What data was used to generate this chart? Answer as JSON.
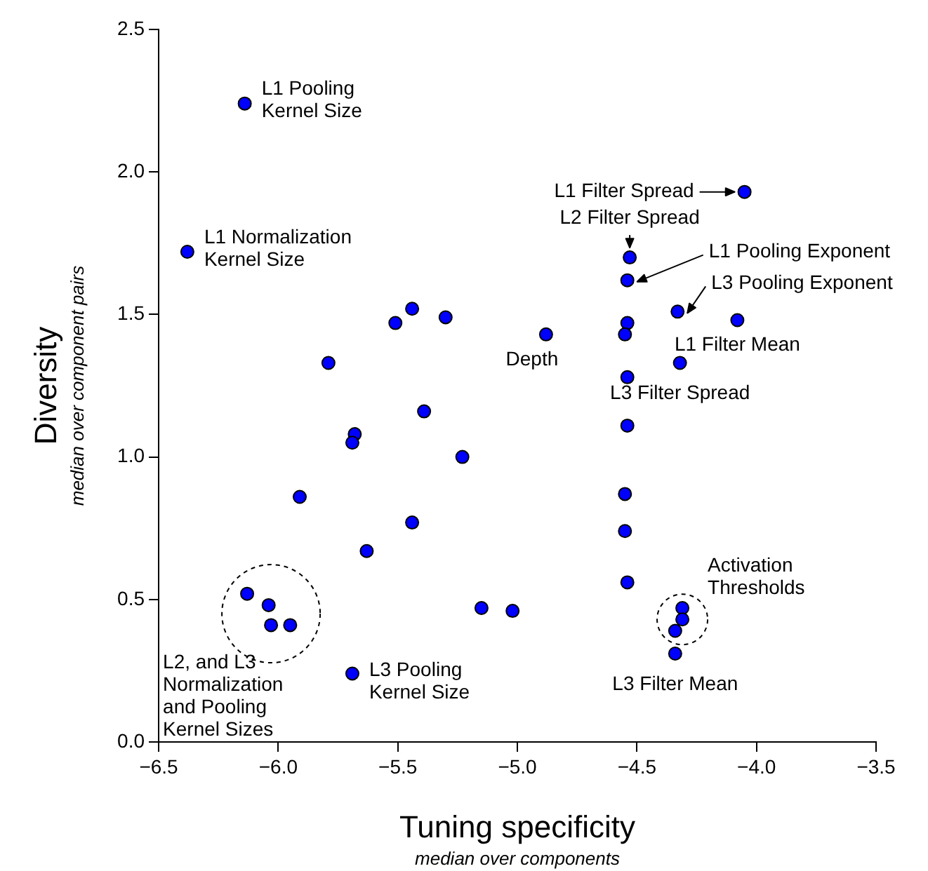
{
  "chart_data": {
    "type": "scatter",
    "xlabel": "Tuning specificity",
    "ylabel": "Diversity",
    "x": [
      -6.14,
      -6.38,
      -5.44,
      -5.51,
      -5.3,
      -5.79,
      -5.39,
      -5.68,
      -5.69,
      -5.23,
      -5.91,
      -5.44,
      -5.63,
      -6.13,
      -6.04,
      -6.03,
      -5.95,
      -5.69,
      -5.15,
      -5.02,
      -4.55,
      -4.55,
      -4.54,
      -4.31,
      -4.31,
      -4.34,
      -4.34,
      -4.05,
      -4.53,
      -4.54,
      -4.33,
      -4.08,
      -4.88,
      -4.54,
      -4.55,
      -4.32,
      -4.54,
      -4.54
    ],
    "values": [
      2.24,
      1.72,
      1.52,
      1.47,
      1.49,
      1.33,
      1.16,
      1.08,
      1.05,
      1.0,
      0.86,
      0.77,
      0.67,
      0.52,
      0.48,
      0.41,
      0.41,
      0.24,
      0.47,
      0.46,
      0.87,
      0.74,
      0.56,
      0.47,
      0.43,
      0.39,
      0.31,
      1.93,
      1.7,
      1.62,
      1.51,
      1.48,
      1.43,
      1.47,
      1.43,
      1.33,
      1.28,
      1.11
    ],
    "color": "#0000ff",
    "marker": "circle",
    "grid": false,
    "legend": false,
    "xlim": [
      -6.5,
      -3.5
    ],
    "xticks": [
      {
        "value": -6.5,
        "label": "−6.5"
      },
      {
        "value": -6.0,
        "label": "−6.0"
      },
      {
        "value": -5.5,
        "label": "−5.5"
      },
      {
        "value": -5.0,
        "label": "−5.0"
      },
      {
        "value": -4.5,
        "label": "−4.5"
      },
      {
        "value": -4.0,
        "label": "−4.0"
      },
      {
        "value": -3.5,
        "label": "−3.5"
      }
    ],
    "ylim": [
      0,
      2.5
    ],
    "yticks": [
      {
        "value": 0,
        "label": "0.0"
      },
      0.5,
      {
        "value": 1,
        "label": "1.0"
      },
      1.5,
      {
        "value": 2,
        "label": "2.0"
      },
      2.5
    ],
    "annotations": [
      {
        "text": "L1 Pooling Kernel Size",
        "x": -6.14,
        "y": 2.24
      },
      {
        "text": "L1 Normalization Kernel Size",
        "x": -6.38,
        "y": 1.72
      },
      {
        "text": "L1 Filter Spread",
        "x": -4.05,
        "y": 1.93
      },
      {
        "text": "L2 Filter Spread",
        "x": -4.53,
        "y": 1.7
      },
      {
        "text": "L1 Pooling Exponent",
        "x": -4.54,
        "y": 1.62
      },
      {
        "text": "L3 Pooling Exponent",
        "x": -4.33,
        "y": 1.51
      },
      {
        "text": "L1 Filter Mean",
        "x": -4.08,
        "y": 1.48
      },
      {
        "text": "Depth",
        "x": -4.88,
        "y": 1.43
      },
      {
        "text": "L3 Filter Spread",
        "x": -4.32,
        "y": 1.33
      },
      {
        "text": "Activation Thresholds",
        "x": -4.31,
        "y": 0.43
      },
      {
        "text": "L3 Filter Mean",
        "x": -4.34,
        "y": 0.31
      },
      {
        "text": "L3 Pooling Kernel Size",
        "x": -5.69,
        "y": 0.24
      },
      {
        "text": "L2, and L3 Normalization and Pooling Kernel Sizes",
        "x": -6.03,
        "y": 0.45
      },
      "median over components",
      "median over component pairs"
    ]
  }
}
